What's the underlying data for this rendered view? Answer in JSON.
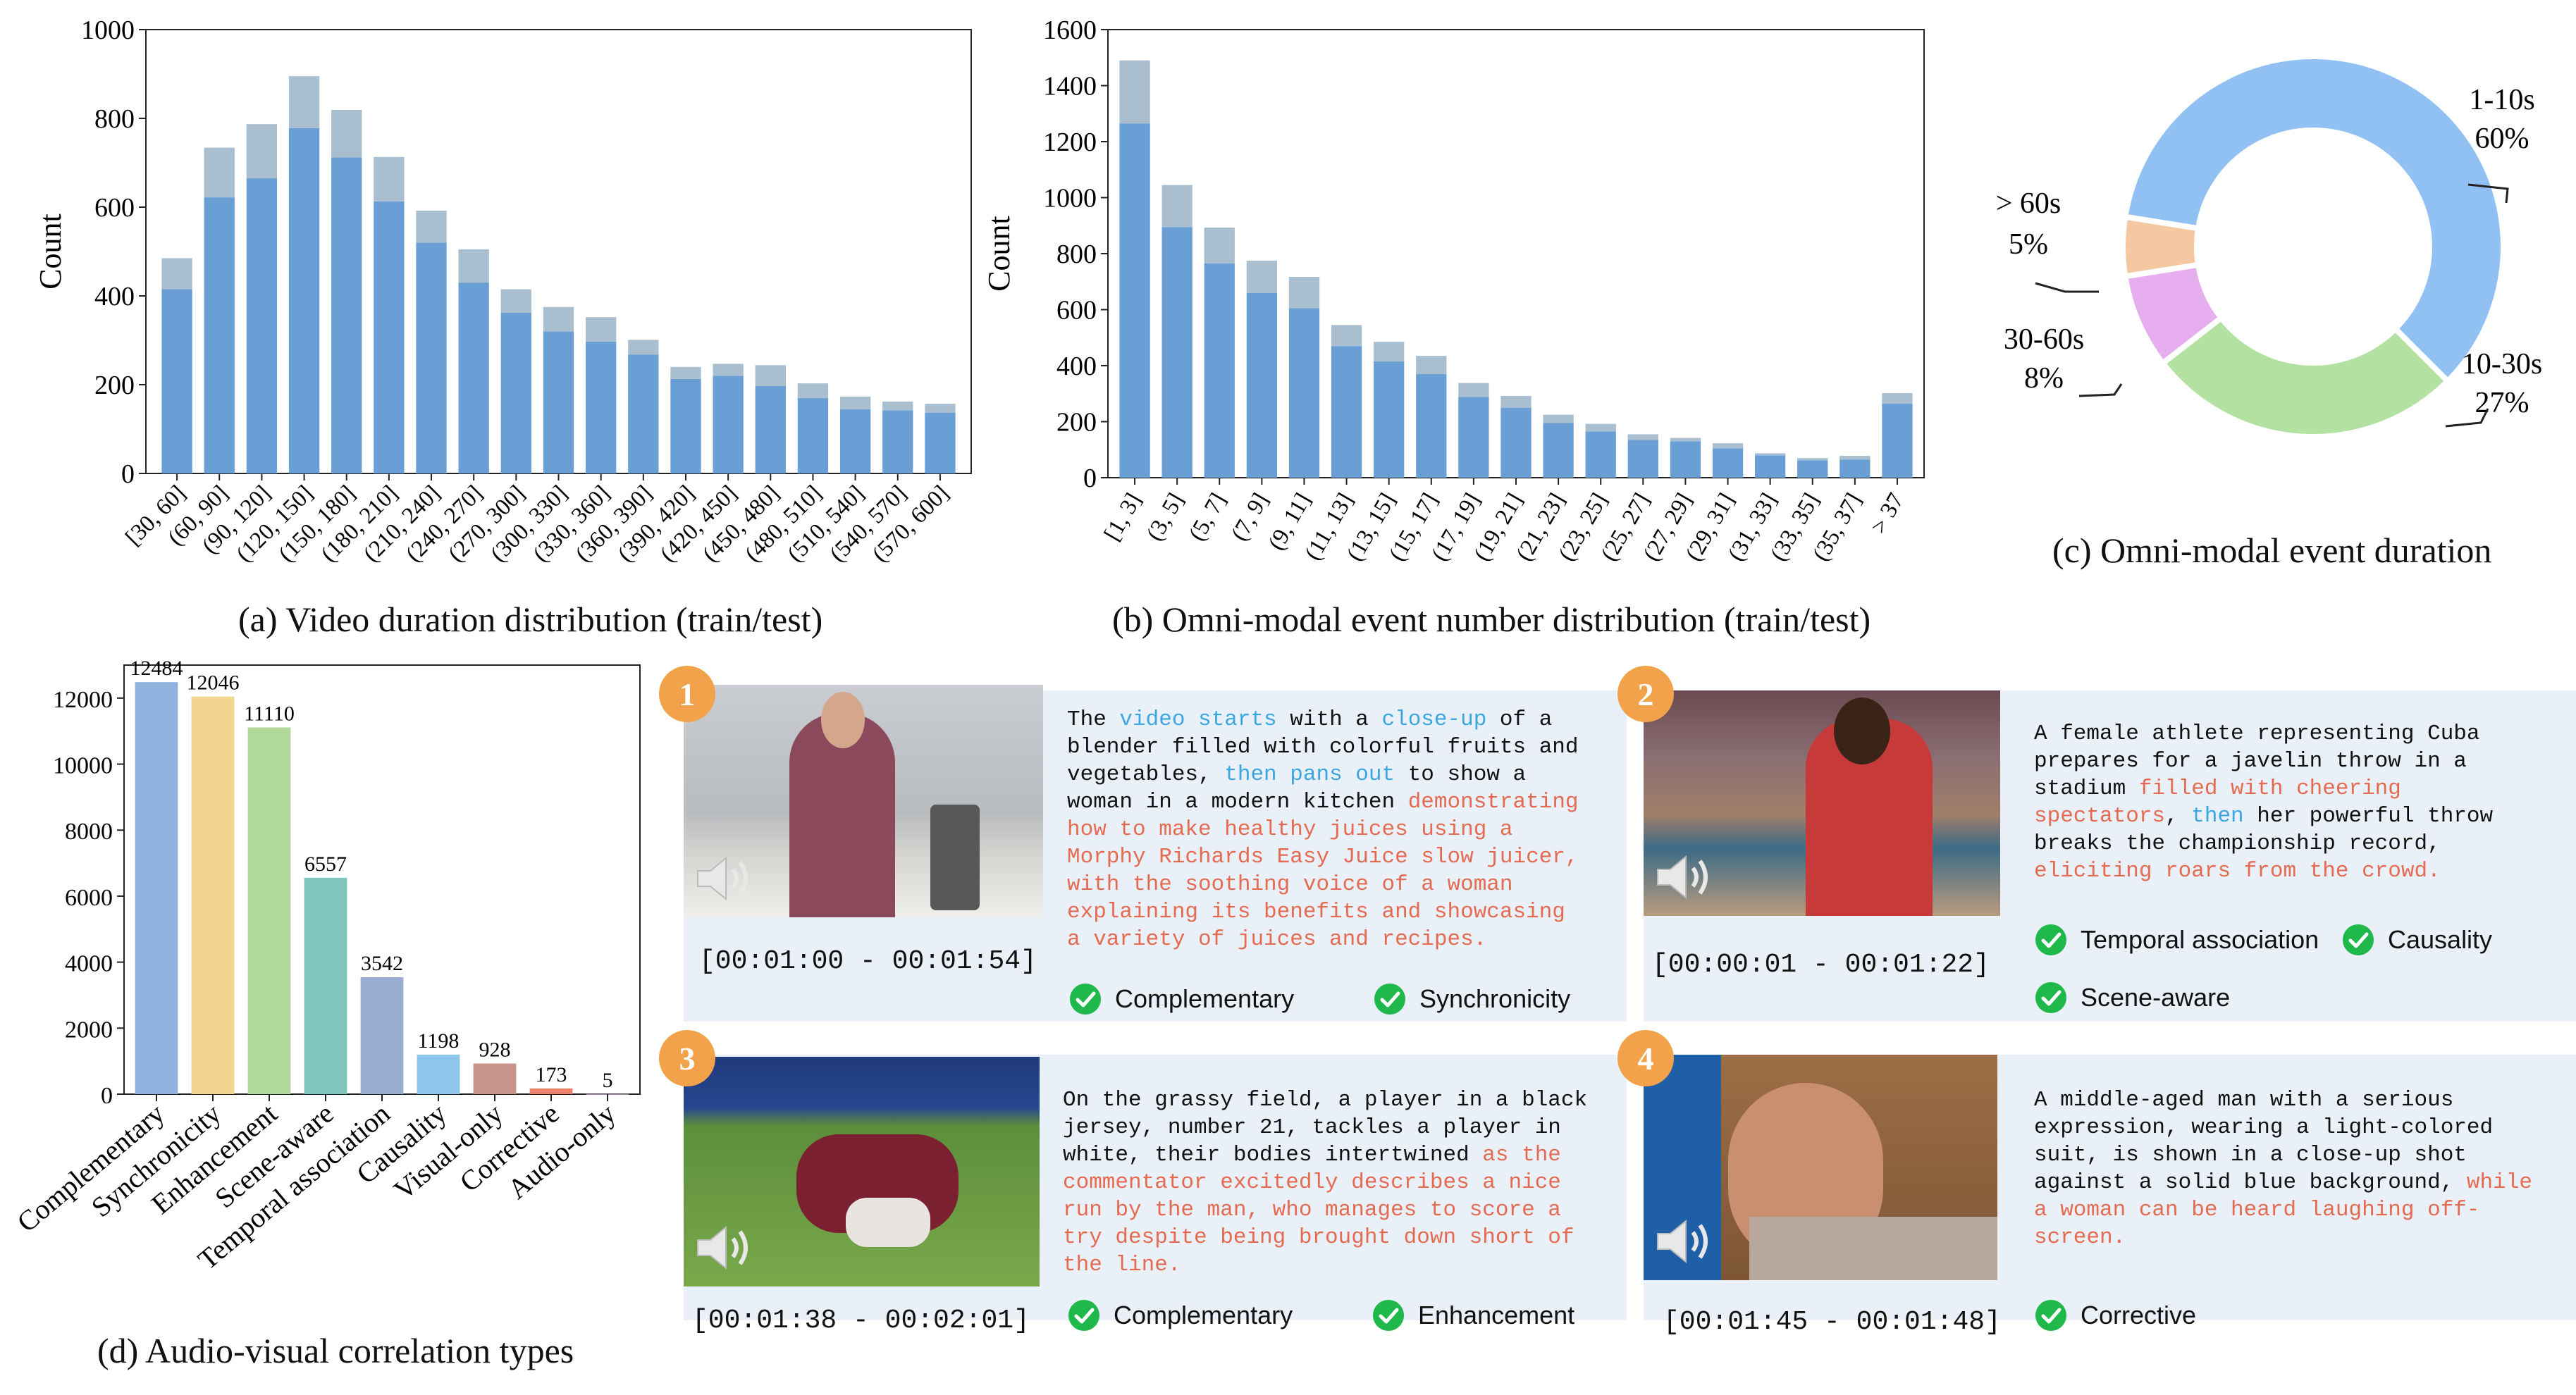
{
  "chart_data": [
    {
      "id": "a",
      "type": "bar",
      "caption": "(a) Video duration distribution (train/test)",
      "ylabel": "Count",
      "ylim": [
        0,
        1000
      ],
      "yticks": [
        0,
        200,
        400,
        600,
        800,
        1000
      ],
      "stacked": true,
      "categories": [
        "[30, 60]",
        "(60, 90]",
        "(90, 120]",
        "(120, 150]",
        "(150, 180]",
        "(180, 210]",
        "(210, 240]",
        "(240, 270]",
        "(270, 300]",
        "(300, 330]",
        "(330, 360]",
        "(360, 390]",
        "(390, 420]",
        "(420, 450]",
        "(450, 480]",
        "(480, 510]",
        "(510, 540]",
        "(540, 570]",
        "(570, 600]"
      ],
      "series": [
        {
          "color": "#6a9fd6",
          "values": [
            415,
            622,
            665,
            778,
            712,
            613,
            520,
            430,
            362,
            320,
            297,
            268,
            213,
            220,
            197,
            170,
            145,
            142,
            137
          ]
        },
        {
          "color": "#a9bfcf",
          "values": [
            70,
            112,
            122,
            117,
            107,
            100,
            72,
            75,
            53,
            55,
            55,
            33,
            27,
            27,
            47,
            33,
            28,
            20,
            20
          ]
        }
      ]
    },
    {
      "id": "b",
      "type": "bar",
      "caption": "(b) Omni-modal event number distribution (train/test)",
      "ylabel": "Count",
      "ylim": [
        0,
        1600
      ],
      "yticks": [
        0,
        200,
        400,
        600,
        800,
        1000,
        1200,
        1400,
        1600
      ],
      "stacked": true,
      "categories": [
        "[1, 3]",
        "(3, 5]",
        "(5, 7]",
        "(7, 9]",
        "(9, 11]",
        "(11, 13]",
        "(13, 15]",
        "(15, 17]",
        "(17, 19]",
        "(19, 21]",
        "(21, 23]",
        "(23, 25]",
        "(25, 27]",
        "(27, 29]",
        "(29, 31]",
        "(31, 33]",
        "(33, 35]",
        "(35, 37]",
        "> 37"
      ],
      "series": [
        {
          "color": "#6a9fd6",
          "values": [
            1265,
            895,
            765,
            660,
            605,
            470,
            415,
            370,
            288,
            250,
            195,
            165,
            135,
            130,
            105,
            80,
            62,
            65,
            265
          ]
        },
        {
          "color": "#a9bfcf",
          "values": [
            225,
            150,
            128,
            115,
            112,
            75,
            70,
            65,
            50,
            42,
            30,
            27,
            20,
            12,
            18,
            7,
            8,
            13,
            37
          ]
        }
      ]
    },
    {
      "id": "c",
      "type": "pie",
      "caption": "(c) Omni-modal event duration",
      "slices": [
        {
          "label": "1-10s",
          "value": 60,
          "pct": "60%",
          "color": "#90c1f2"
        },
        {
          "label": "10-30s",
          "value": 27,
          "pct": "27%",
          "color": "#b3e1a2"
        },
        {
          "label": "30-60s",
          "value": 8,
          "pct": "8%",
          "color": "#e6aeef"
        },
        {
          "label": "> 60s",
          "value": 5,
          "pct": "5%",
          "color": "#f4c9a2"
        }
      ]
    },
    {
      "id": "d",
      "type": "bar",
      "caption": "(d) Audio-visual correlation types",
      "ylim": [
        0,
        13000
      ],
      "yticks": [
        0,
        2000,
        4000,
        6000,
        8000,
        10000,
        12000
      ],
      "categories": [
        "Complementary",
        "Synchronicity",
        "Enhancement",
        "Scene-aware",
        "Temporal association",
        "Causality",
        "Visual-only",
        "Corrective",
        "Audio-only"
      ],
      "values": [
        12484,
        12046,
        11110,
        6557,
        3542,
        1198,
        928,
        173,
        5
      ],
      "colors": [
        "#8fb3de",
        "#f3d48f",
        "#b1d89b",
        "#7fc6bf",
        "#98abd1",
        "#8ec7ec",
        "#c9958a",
        "#ec8068",
        "#c7a8d0"
      ]
    }
  ],
  "examples": [
    {
      "num": "1",
      "time": "[00:01:00 - 00:01:54]",
      "lines": [
        [
          {
            "t": "The ",
            "c": ""
          },
          {
            "t": "video starts",
            "c": "blue"
          },
          {
            "t": " with a ",
            "c": ""
          },
          {
            "t": "close-up",
            "c": "blue"
          },
          {
            "t": " of a",
            "c": ""
          }
        ],
        [
          {
            "t": "blender filled with colorful fruits and",
            "c": ""
          }
        ],
        [
          {
            "t": "vegetables, ",
            "c": ""
          },
          {
            "t": "then pans out",
            "c": "blue"
          },
          {
            "t": " to show a",
            "c": ""
          }
        ],
        [
          {
            "t": "woman in a modern kitchen ",
            "c": ""
          },
          {
            "t": "demonstrating",
            "c": "red"
          }
        ],
        [
          {
            "t": "how to make healthy juices using a",
            "c": "red"
          }
        ],
        [
          {
            "t": "Morphy Richards Easy Juice slow juicer,",
            "c": "red"
          }
        ],
        [
          {
            "t": "with the soothing voice of a woman",
            "c": "red"
          }
        ],
        [
          {
            "t": "explaining its benefits and showcasing",
            "c": "red"
          }
        ],
        [
          {
            "t": "a variety of juices and recipes.",
            "c": "red"
          }
        ]
      ],
      "tags": [
        "Complementary",
        "Synchronicity"
      ]
    },
    {
      "num": "2",
      "time": "[00:00:01 - 00:01:22]",
      "lines": [
        [
          {
            "t": "A female athlete representing Cuba",
            "c": ""
          }
        ],
        [
          {
            "t": "prepares for a javelin throw in a",
            "c": ""
          }
        ],
        [
          {
            "t": "stadium ",
            "c": ""
          },
          {
            "t": "filled with cheering",
            "c": "red"
          }
        ],
        [
          {
            "t": "spectators",
            "c": "red"
          },
          {
            "t": ", ",
            "c": ""
          },
          {
            "t": "then",
            "c": "blue"
          },
          {
            "t": " her powerful throw",
            "c": ""
          }
        ],
        [
          {
            "t": "breaks the championship record,",
            "c": ""
          }
        ],
        [
          {
            "t": "eliciting roars from the crowd.",
            "c": "red"
          }
        ]
      ],
      "tags": [
        "Temporal association",
        "Causality",
        "Scene-aware"
      ]
    },
    {
      "num": "3",
      "time": "[00:01:38 - 00:02:01]",
      "lines": [
        [
          {
            "t": "On the grassy field, a player in a black",
            "c": ""
          }
        ],
        [
          {
            "t": "jersey, number 21, tackles a player in",
            "c": ""
          }
        ],
        [
          {
            "t": "white, their bodies intertwined ",
            "c": ""
          },
          {
            "t": "as the",
            "c": "red"
          }
        ],
        [
          {
            "t": "commentator excitedly describes a nice",
            "c": "red"
          }
        ],
        [
          {
            "t": "run by the man, who manages to score a",
            "c": "red"
          }
        ],
        [
          {
            "t": "try despite being brought down short of",
            "c": "red"
          }
        ],
        [
          {
            "t": "the line.",
            "c": "red"
          }
        ]
      ],
      "tags": [
        "Complementary",
        "Enhancement"
      ]
    },
    {
      "num": "4",
      "time": "[00:01:45 - 00:01:48]",
      "lines": [
        [
          {
            "t": "A middle-aged man with a serious",
            "c": ""
          }
        ],
        [
          {
            "t": "expression, wearing a light-colored",
            "c": ""
          }
        ],
        [
          {
            "t": "suit, is shown in a close-up shot",
            "c": ""
          }
        ],
        [
          {
            "t": "against a solid blue background, ",
            "c": ""
          },
          {
            "t": "while",
            "c": "red"
          }
        ],
        [
          {
            "t": "a woman can be heard laughing off-",
            "c": "red"
          }
        ],
        [
          {
            "t": "screen.",
            "c": "red"
          }
        ]
      ],
      "tags": [
        "Corrective"
      ]
    }
  ]
}
